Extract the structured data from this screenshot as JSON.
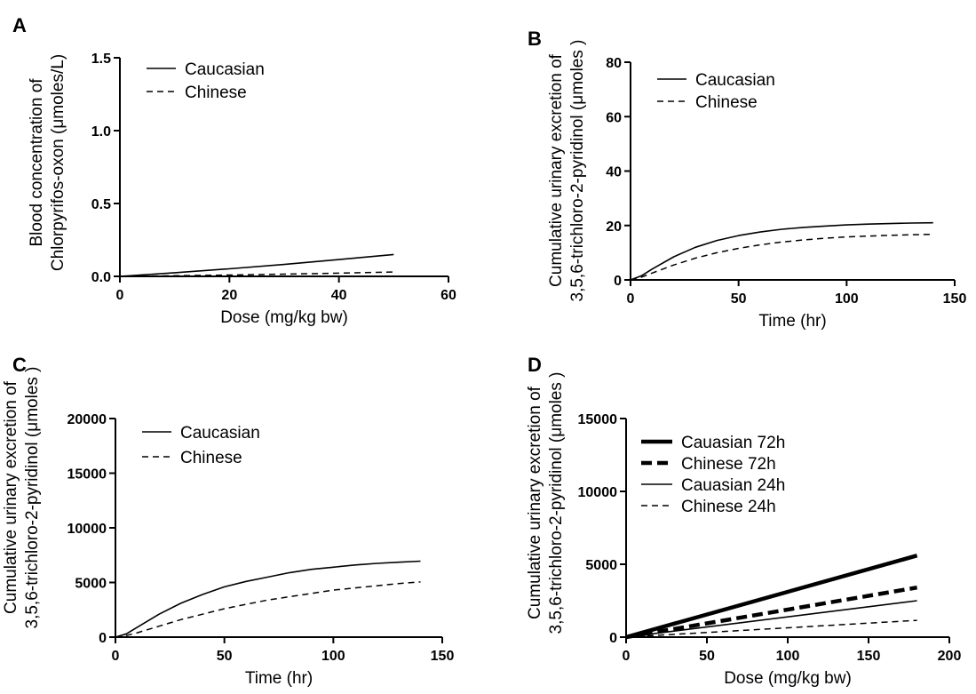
{
  "chart_data": [
    {
      "panel": "A",
      "type": "line",
      "xlabel": "Dose (mg/kg bw)",
      "ylabel_lines": [
        "Blood concentration of",
        "Chlorpyrifos-oxon (μmoles/L)"
      ],
      "xlim": [
        0,
        60
      ],
      "ylim": [
        0,
        1.5
      ],
      "xticks": [
        "0",
        "20",
        "40",
        "60"
      ],
      "yticks": [
        "0.0",
        "0.5",
        "1.0",
        "1.5"
      ],
      "legend_position": "top-left",
      "series": [
        {
          "name": "Caucasian",
          "style": "solid",
          "x": [
            0,
            10,
            20,
            30,
            40,
            50
          ],
          "y": [
            0,
            0.025,
            0.052,
            0.082,
            0.115,
            0.15
          ]
        },
        {
          "name": "Chinese",
          "style": "dashed",
          "x": [
            0,
            10,
            20,
            30,
            40,
            50
          ],
          "y": [
            0,
            0.004,
            0.009,
            0.015,
            0.022,
            0.03
          ]
        }
      ]
    },
    {
      "panel": "B",
      "type": "line",
      "xlabel": "Time (hr)",
      "ylabel_lines": [
        "Cumulative urinary excretion of",
        "3,5,6-trichloro-2-pyridinol (μmoles )"
      ],
      "xlim": [
        0,
        150
      ],
      "ylim": [
        0,
        80
      ],
      "xticks": [
        "0",
        "50",
        "100",
        "150"
      ],
      "yticks": [
        "0",
        "20",
        "40",
        "60",
        "80"
      ],
      "legend_position": "top-left",
      "series": [
        {
          "name": "Caucasian",
          "style": "solid",
          "x": [
            0,
            5,
            10,
            20,
            30,
            40,
            50,
            60,
            70,
            80,
            90,
            100,
            110,
            120,
            130,
            140
          ],
          "y": [
            0,
            1.5,
            4,
            8.5,
            12,
            14.5,
            16.3,
            17.6,
            18.6,
            19.3,
            19.8,
            20.2,
            20.5,
            20.7,
            20.9,
            21
          ]
        },
        {
          "name": "Chinese",
          "style": "dashed",
          "x": [
            0,
            5,
            10,
            20,
            30,
            40,
            50,
            60,
            70,
            80,
            90,
            100,
            110,
            120,
            130,
            140
          ],
          "y": [
            0,
            1,
            2.5,
            5.5,
            8,
            10,
            11.6,
            12.9,
            13.9,
            14.7,
            15.3,
            15.8,
            16.1,
            16.4,
            16.6,
            16.8
          ]
        }
      ]
    },
    {
      "panel": "C",
      "type": "line",
      "xlabel": "Time (hr)",
      "ylabel_lines": [
        "Cumulative urinary excretion of",
        "3,5,6-trichloro-2-pyridinol (μmoles )"
      ],
      "xlim": [
        0,
        150
      ],
      "ylim": [
        0,
        20000
      ],
      "xticks": [
        "0",
        "50",
        "100",
        "150"
      ],
      "yticks": [
        "0",
        "5000",
        "10000",
        "15000",
        "20000"
      ],
      "legend_position": "top-left",
      "series": [
        {
          "name": "Caucasian",
          "style": "solid",
          "x": [
            0,
            5,
            10,
            20,
            30,
            40,
            50,
            60,
            70,
            80,
            90,
            100,
            110,
            120,
            130,
            140
          ],
          "y": [
            0,
            300,
            900,
            2100,
            3100,
            3900,
            4600,
            5100,
            5500,
            5900,
            6200,
            6400,
            6600,
            6750,
            6850,
            6950
          ]
        },
        {
          "name": "Chinese",
          "style": "dashed",
          "x": [
            0,
            5,
            10,
            20,
            30,
            40,
            50,
            60,
            70,
            80,
            90,
            100,
            110,
            120,
            130,
            140
          ],
          "y": [
            0,
            150,
            400,
            1000,
            1600,
            2100,
            2600,
            3000,
            3400,
            3700,
            4000,
            4300,
            4500,
            4700,
            4900,
            5050
          ]
        }
      ]
    },
    {
      "panel": "D",
      "type": "line",
      "xlabel": "Dose (mg/kg bw)",
      "ylabel_lines": [
        "Cumulative urinary excretion of",
        "3,5,6-trichloro-2-pyridinol (μmoles )"
      ],
      "xlim": [
        0,
        200
      ],
      "ylim": [
        0,
        15000
      ],
      "xticks": [
        "0",
        "50",
        "100",
        "150",
        "200"
      ],
      "yticks": [
        "0",
        "5000",
        "10000",
        "15000"
      ],
      "legend_position": "top-left",
      "series": [
        {
          "name": "Cauasian 72h",
          "style": "thick-solid",
          "x": [
            0,
            180
          ],
          "y": [
            0,
            5600
          ]
        },
        {
          "name": "Chinese 72h",
          "style": "thick-dashed",
          "x": [
            0,
            180
          ],
          "y": [
            0,
            3400
          ]
        },
        {
          "name": "Cauasian 24h",
          "style": "solid",
          "x": [
            0,
            180
          ],
          "y": [
            0,
            2500
          ]
        },
        {
          "name": "Chinese 24h",
          "style": "dashed",
          "x": [
            0,
            180
          ],
          "y": [
            0,
            1150
          ]
        }
      ]
    }
  ]
}
